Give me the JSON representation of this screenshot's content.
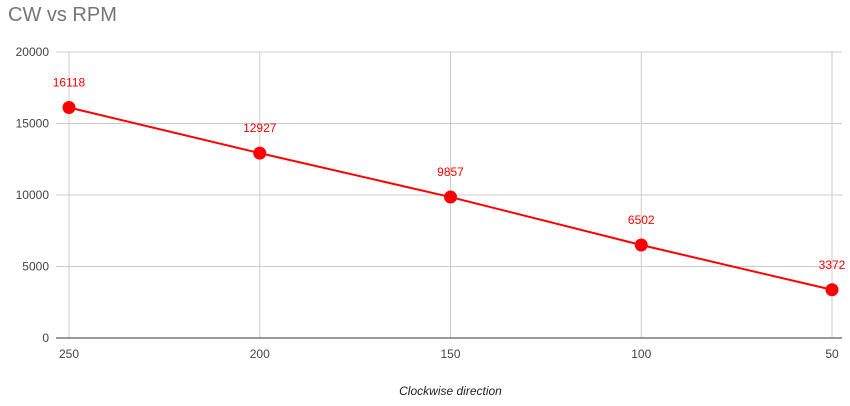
{
  "chart_data": {
    "type": "line",
    "title": "CW vs RPM",
    "xlabel": "Clockwise direction",
    "ylabel": "",
    "categories": [
      "250",
      "200",
      "150",
      "100",
      "50"
    ],
    "series": [
      {
        "values": [
          16118,
          12927,
          9857,
          6502,
          3372
        ]
      }
    ],
    "data_labels": [
      "16118",
      "12927",
      "9857",
      "6502",
      "3372"
    ],
    "y_ticks": [
      "0",
      "5000",
      "10000",
      "15000",
      "20000"
    ],
    "ylim": [
      0,
      20000
    ],
    "grid": true,
    "legend": "none",
    "colors": {
      "series": "#ff0000",
      "grid": "#cccccc",
      "title": "#757575"
    }
  }
}
